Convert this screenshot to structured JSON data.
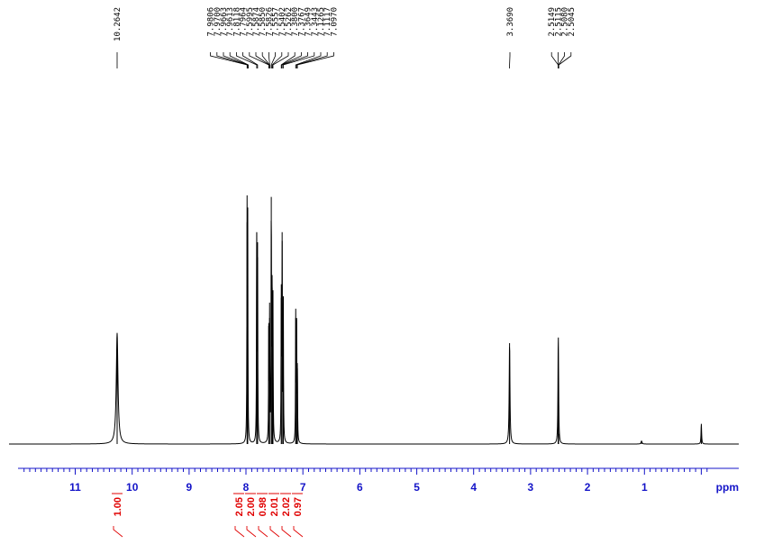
{
  "chart_data": {
    "type": "line",
    "xlabel": "ppm",
    "xlim": [
      12.0,
      -0.5
    ],
    "x_reversed": true,
    "x_ticks": [
      11,
      10,
      9,
      8,
      7,
      6,
      5,
      4,
      3,
      2,
      1
    ],
    "x_tick_labels": [
      "11",
      "10",
      "9",
      "8",
      "7",
      "6",
      "5",
      "4",
      "3",
      "2",
      "1"
    ],
    "y_relative_max": 1.0,
    "grid": false,
    "colors": {
      "spectrum": "#000000",
      "axis": "#1414c8",
      "integral": "#e00000"
    },
    "peak_labels": {
      "group_1": [
        "10.2642"
      ],
      "group_2": [
        "7.9806",
        "7.9700",
        "7.9663",
        "7.9613",
        "7.8118",
        "7.7964",
        "7.5995",
        "7.5874",
        "7.5850",
        "7.5826",
        "7.5557",
        "7.5402",
        "7.5262",
        "7.3800",
        "7.3767",
        "7.3649",
        "7.3443",
        "7.1265",
        "7.1117",
        "7.0970"
      ],
      "group_3": [
        "3.3690"
      ],
      "group_4": [
        "2.5149",
        "2.5115",
        "2.5080",
        "2.5045"
      ]
    },
    "peaks": [
      {
        "ppm": 10.2642,
        "intensity": 0.44,
        "width": 0.018
      },
      {
        "ppm": 7.9806,
        "intensity": 0.88,
        "width": 0.004
      },
      {
        "ppm": 7.97,
        "intensity": 0.9,
        "width": 0.004
      },
      {
        "ppm": 7.8118,
        "intensity": 0.84,
        "width": 0.004
      },
      {
        "ppm": 7.7964,
        "intensity": 0.8,
        "width": 0.004
      },
      {
        "ppm": 7.5995,
        "intensity": 0.48,
        "width": 0.004
      },
      {
        "ppm": 7.585,
        "intensity": 0.5,
        "width": 0.004
      },
      {
        "ppm": 7.5557,
        "intensity": 0.98,
        "width": 0.004
      },
      {
        "ppm": 7.5402,
        "intensity": 0.62,
        "width": 0.004
      },
      {
        "ppm": 7.5262,
        "intensity": 0.55,
        "width": 0.004
      },
      {
        "ppm": 7.38,
        "intensity": 0.58,
        "width": 0.004
      },
      {
        "ppm": 7.3649,
        "intensity": 0.84,
        "width": 0.004
      },
      {
        "ppm": 7.3443,
        "intensity": 0.56,
        "width": 0.004
      },
      {
        "ppm": 7.1265,
        "intensity": 0.5,
        "width": 0.004
      },
      {
        "ppm": 7.1117,
        "intensity": 0.5,
        "width": 0.004
      },
      {
        "ppm": 7.097,
        "intensity": 0.3,
        "width": 0.004
      },
      {
        "ppm": 3.369,
        "intensity": 0.4,
        "width": 0.008
      },
      {
        "ppm": 2.5149,
        "intensity": 0.22,
        "width": 0.006
      },
      {
        "ppm": 2.5115,
        "intensity": 0.22,
        "width": 0.006
      },
      {
        "ppm": 2.508,
        "intensity": 0.04,
        "width": 0.006
      },
      {
        "ppm": 1.05,
        "intensity": 0.012,
        "width": 0.01
      },
      {
        "ppm": -0.0,
        "intensity": 0.08,
        "width": 0.006
      }
    ],
    "integrals": [
      {
        "ppm": 10.2642,
        "value": "1.00"
      },
      {
        "ppm": 7.98,
        "value": "2.05"
      },
      {
        "ppm": 7.8,
        "value": "2.00"
      },
      {
        "ppm": 7.59,
        "value": "0.98"
      },
      {
        "ppm": 7.54,
        "value": "2.01"
      },
      {
        "ppm": 7.36,
        "value": "2.02"
      },
      {
        "ppm": 7.11,
        "value": "0.97"
      }
    ]
  }
}
